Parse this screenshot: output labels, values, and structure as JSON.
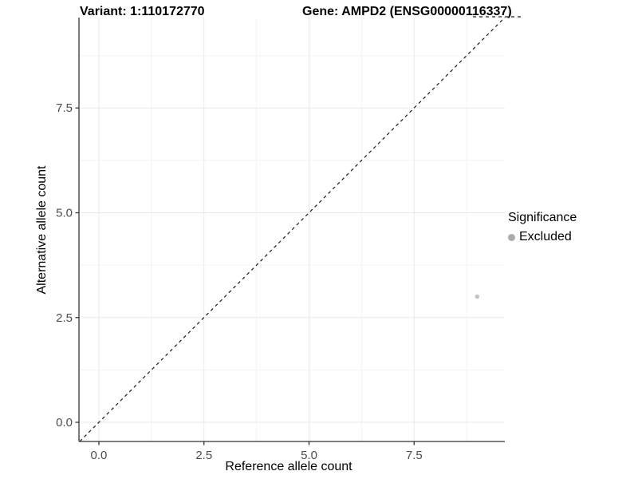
{
  "titles": {
    "variant": "Variant: 1:110172770",
    "gene": "Gene: AMPD2 (ENSG00000116337)"
  },
  "axes": {
    "x": {
      "title": "Reference allele count",
      "ticks": [
        "0.0",
        "2.5",
        "5.0",
        "7.5"
      ]
    },
    "y": {
      "title": "Alternative allele count",
      "ticks": [
        "0.0",
        "2.5",
        "5.0",
        "7.5"
      ]
    }
  },
  "legend": {
    "title": "Significance",
    "items": [
      {
        "label": "Excluded",
        "color": "#ababab"
      }
    ]
  },
  "chart_data": {
    "type": "scatter",
    "title": "Variant: 1:110172770   Gene: AMPD2 (ENSG00000116337)",
    "xlabel": "Reference allele count",
    "ylabel": "Alternative allele count",
    "xlim": [
      -0.474,
      9.658
    ],
    "ylim": [
      -0.457,
      9.657
    ],
    "x_ticks": [
      0,
      2.5,
      5,
      7.5
    ],
    "y_ticks": [
      0,
      2.5,
      5,
      7.5
    ],
    "x_minor_ticks": [
      1.25,
      3.75,
      6.25,
      8.75
    ],
    "y_minor_ticks": [
      1.25,
      3.75,
      6.25,
      8.75
    ],
    "grid": "major+minor",
    "legend_position": "right",
    "series": [
      {
        "name": "Excluded",
        "color": "#c5c5c5",
        "points": [
          {
            "x": 9,
            "y": 3
          }
        ]
      }
    ],
    "reference_line": {
      "type": "identity y=x",
      "style": "dashed",
      "color": "#1a1a1a"
    },
    "secondary_dashed_segment": {
      "y": 9.676,
      "x_start": 8.9,
      "x_end": 10.05
    },
    "colors": {
      "background": "#ffffff",
      "axis_line": "#333333",
      "grid_major": "#e8e8e8",
      "grid_minor": "#f3f3f3",
      "tick_label": "#4d4d4d",
      "point": "#c5c5c5",
      "legend_key": "#ababab"
    }
  }
}
